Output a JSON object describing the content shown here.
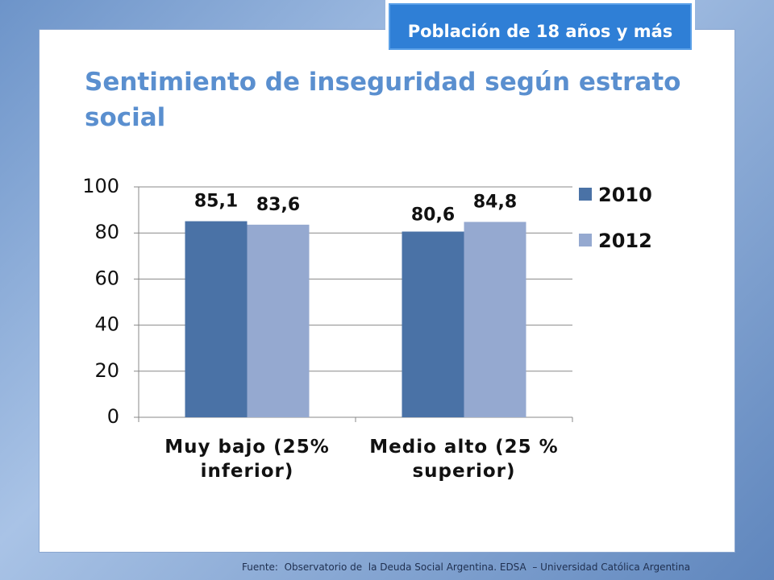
{
  "badge": "Población de 18 años y más",
  "source": "Fuente:  Observatorio de  la Deuda Social Argentina. EDSA  – Universidad Católica Argentina",
  "chart_data": {
    "type": "bar",
    "title": "Sentimiento de inseguridad según estrato social",
    "categories": [
      "Muy bajo (25% inferior)",
      "Medio alto (25 % superior)"
    ],
    "series": [
      {
        "name": "2010",
        "color": "#4a72a6",
        "values": [
          85.1,
          80.6
        ],
        "value_labels": [
          "85,1",
          "80,6"
        ]
      },
      {
        "name": "2012",
        "color": "#95a9d0",
        "values": [
          83.6,
          84.8
        ],
        "value_labels": [
          "83,6",
          "84,8"
        ]
      }
    ],
    "ylim": [
      0,
      100
    ],
    "yticks": [
      0,
      20,
      40,
      60,
      80,
      100
    ],
    "grid": true,
    "legend": "right"
  }
}
